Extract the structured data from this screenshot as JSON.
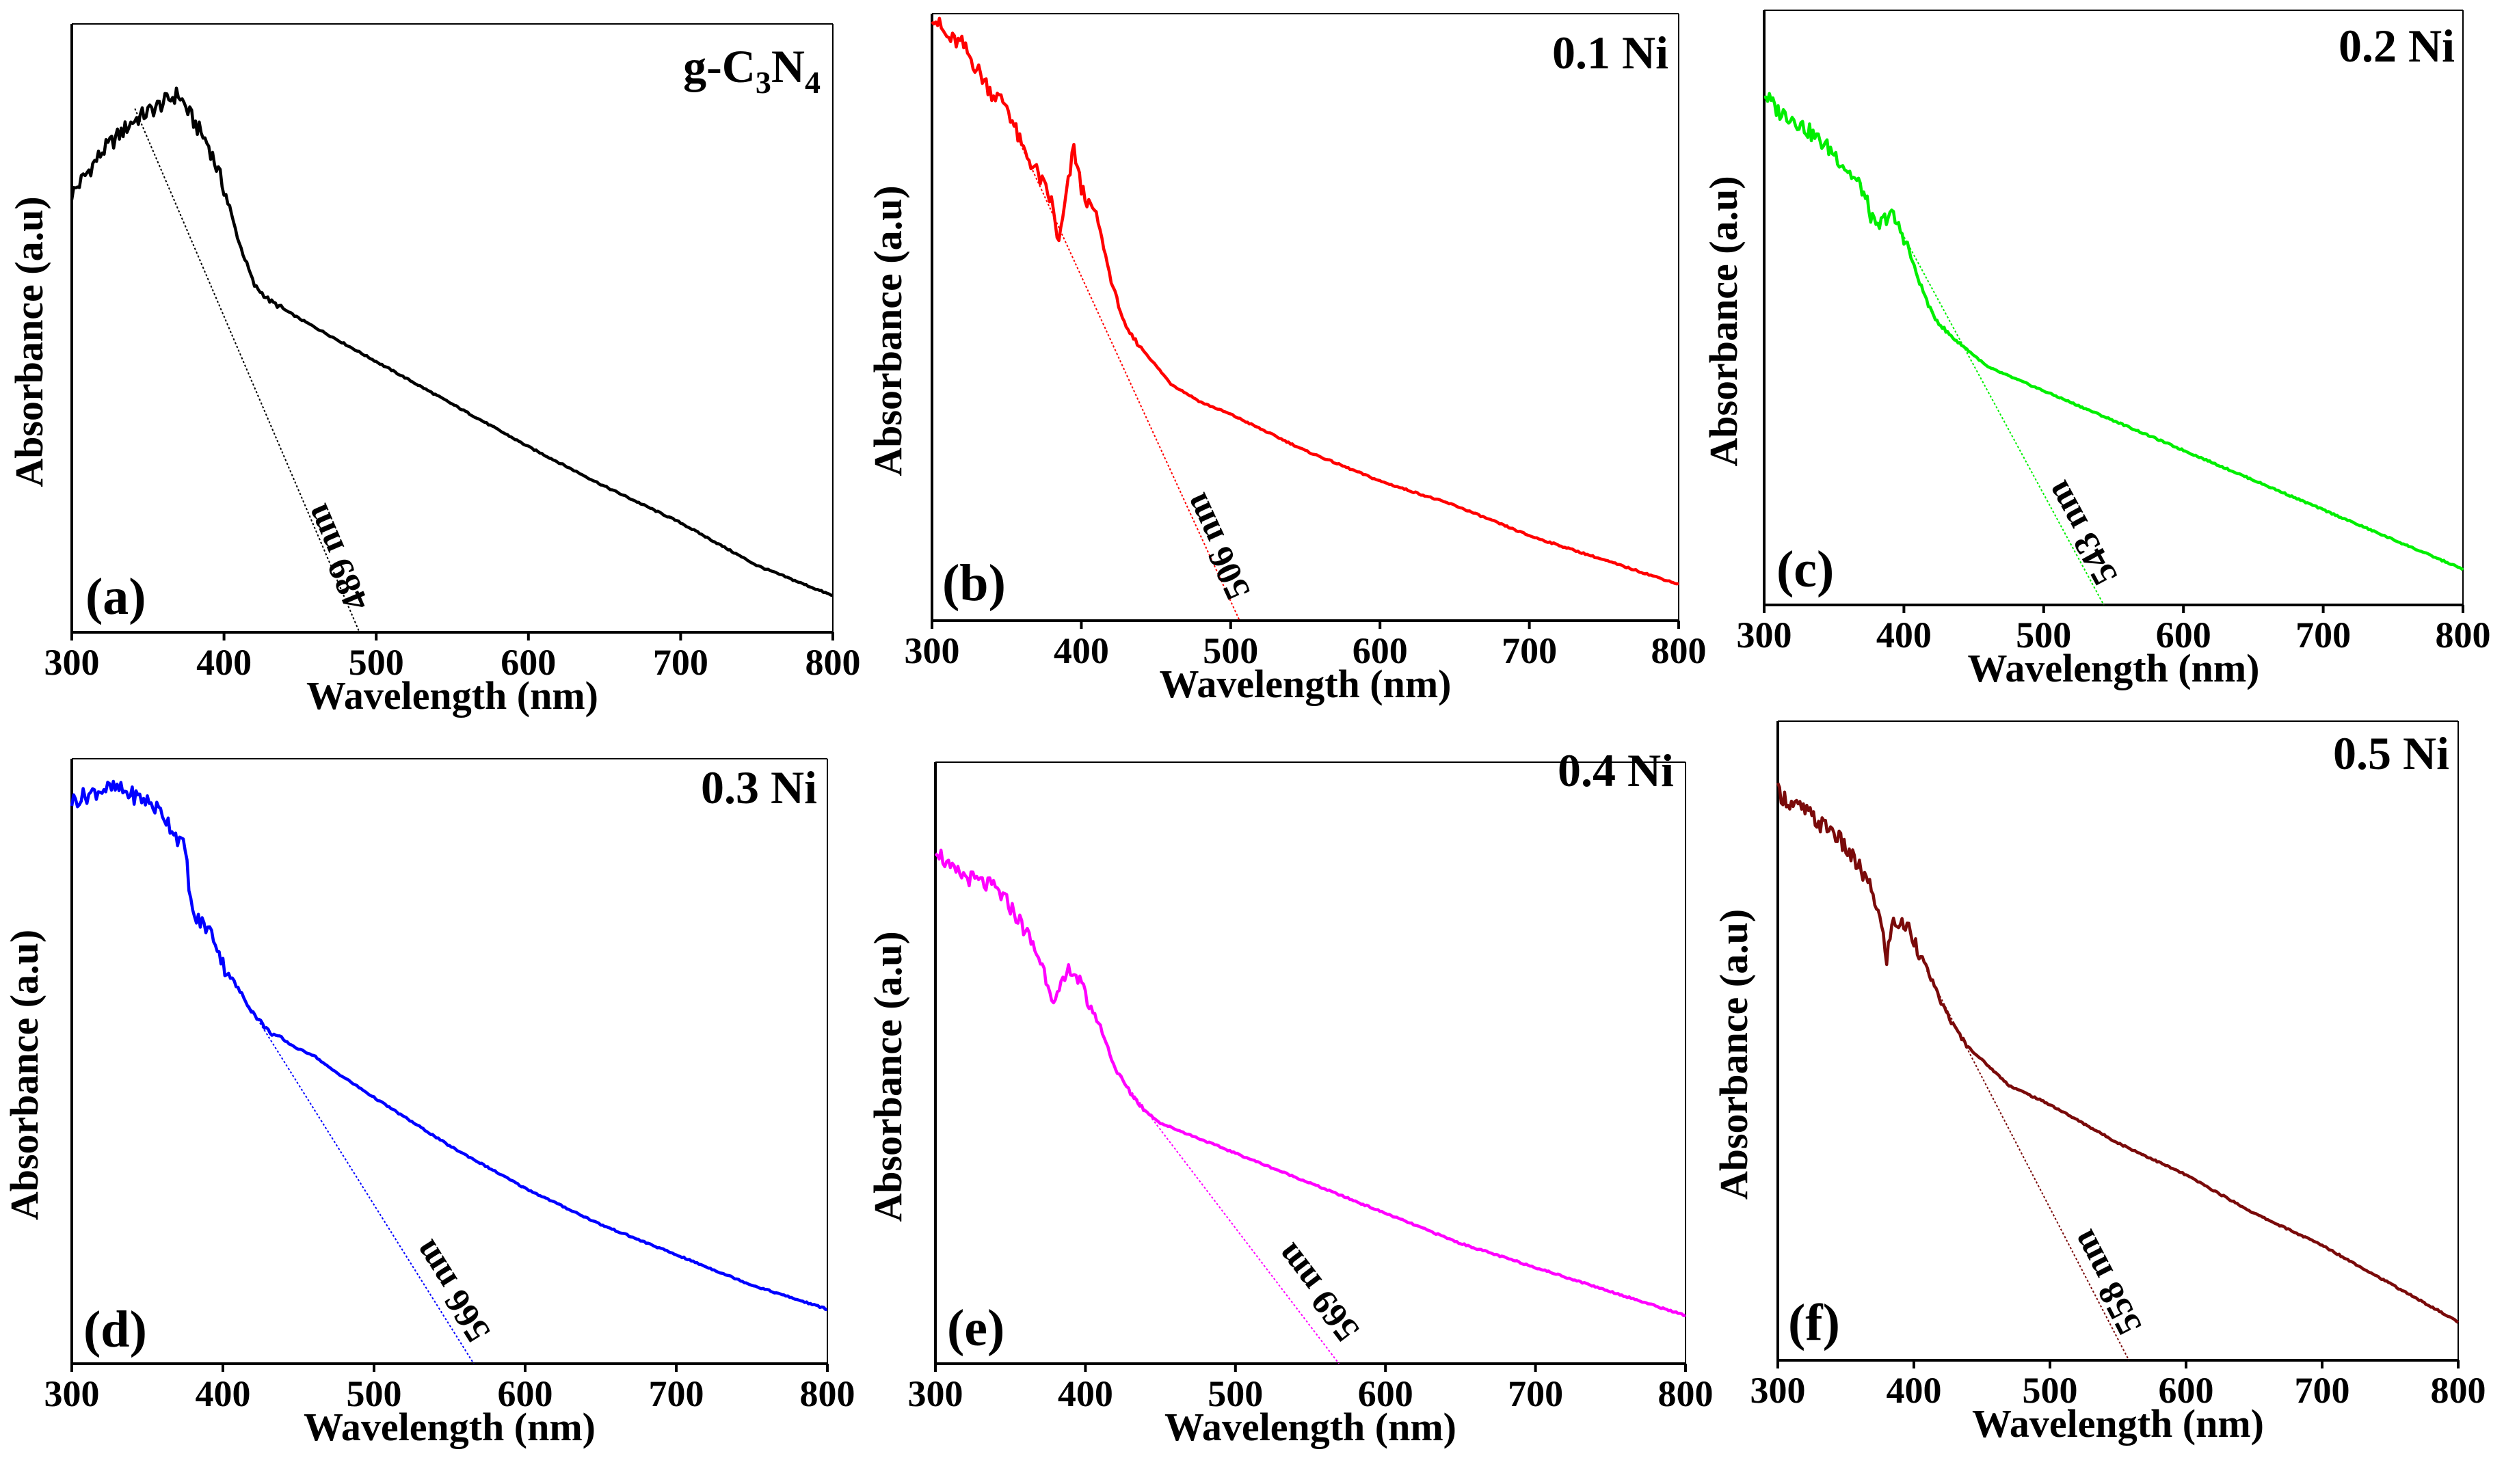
{
  "figure": {
    "xlabel": "Wavelength (nm)",
    "ylabel": "Absorbance (a.u)",
    "x_ticks": [
      "300",
      "400",
      "500",
      "600",
      "700",
      "800"
    ]
  },
  "chart_data": [
    {
      "type": "line",
      "panel": "(a)",
      "title": "g-C3N4",
      "xlabel": "Wavelength (nm)",
      "ylabel": "Absorbance (a.u)",
      "xlim": [
        300,
        800
      ],
      "ylim": [
        0,
        1
      ],
      "color": "#000000",
      "absorption_edge_nm": 489,
      "absorption_edge_label": "489 nm",
      "series": [
        {
          "x": [
            300,
            320,
            340,
            360,
            370,
            380,
            390,
            400,
            410,
            420,
            430,
            450,
            500,
            550,
            600,
            650,
            700,
            750,
            800
          ],
          "y": [
            0.72,
            0.79,
            0.84,
            0.87,
            0.885,
            0.84,
            0.8,
            0.73,
            0.64,
            0.57,
            0.545,
            0.515,
            0.445,
            0.375,
            0.305,
            0.24,
            0.18,
            0.11,
            0.06
          ]
        }
      ]
    },
    {
      "type": "line",
      "panel": "(b)",
      "title": "0.1 Ni",
      "xlabel": "Wavelength (nm)",
      "ylabel": "Absorbance (a.u)",
      "xlim": [
        300,
        800
      ],
      "ylim": [
        0,
        1
      ],
      "color": "#ff0000",
      "absorption_edge_nm": 506,
      "absorption_edge_label": "506 nm",
      "series": [
        {
          "x": [
            300,
            310,
            320,
            330,
            340,
            350,
            360,
            370,
            380,
            385,
            390,
            395,
            400,
            410,
            420,
            430,
            440,
            450,
            460,
            480,
            500,
            550,
            600,
            650,
            700,
            750,
            800
          ],
          "y": [
            1.0,
            0.96,
            0.95,
            0.91,
            0.87,
            0.85,
            0.78,
            0.74,
            0.69,
            0.62,
            0.7,
            0.78,
            0.71,
            0.67,
            0.56,
            0.48,
            0.45,
            0.42,
            0.39,
            0.36,
            0.34,
            0.28,
            0.23,
            0.19,
            0.14,
            0.1,
            0.06
          ]
        }
      ]
    },
    {
      "type": "line",
      "panel": "(c)",
      "title": "0.2 Ni",
      "xlabel": "Wavelength (nm)",
      "ylabel": "Absorbance (a.u)",
      "xlim": [
        300,
        800
      ],
      "ylim": [
        0,
        1
      ],
      "color": "#00ee00",
      "absorption_edge_nm": 543,
      "absorption_edge_label": "543 nm",
      "series": [
        {
          "x": [
            300,
            310,
            320,
            330,
            340,
            350,
            360,
            370,
            380,
            390,
            400,
            410,
            420,
            430,
            440,
            450,
            460,
            470,
            500,
            550,
            600,
            650,
            700,
            750,
            800
          ],
          "y": [
            0.86,
            0.83,
            0.82,
            0.8,
            0.78,
            0.76,
            0.73,
            0.7,
            0.63,
            0.66,
            0.62,
            0.55,
            0.49,
            0.46,
            0.44,
            0.42,
            0.4,
            0.39,
            0.36,
            0.31,
            0.26,
            0.21,
            0.16,
            0.11,
            0.06
          ]
        }
      ]
    },
    {
      "type": "line",
      "panel": "(d)",
      "title": "0.3 Ni",
      "xlabel": "Wavelength (nm)",
      "ylabel": "Absorbance (a.u)",
      "xlim": [
        300,
        800
      ],
      "ylim": [
        0,
        1
      ],
      "color": "#0000ff",
      "absorption_edge_nm": 566,
      "absorption_edge_label": "566 nm",
      "series": [
        {
          "x": [
            300,
            310,
            320,
            330,
            340,
            350,
            360,
            370,
            375,
            380,
            385,
            390,
            395,
            400,
            410,
            420,
            430,
            450,
            460,
            470,
            500,
            550,
            600,
            650,
            700,
            750,
            800
          ],
          "y": [
            0.93,
            0.94,
            0.95,
            0.95,
            0.94,
            0.93,
            0.91,
            0.87,
            0.85,
            0.74,
            0.73,
            0.72,
            0.7,
            0.66,
            0.62,
            0.58,
            0.55,
            0.52,
            0.51,
            0.49,
            0.44,
            0.36,
            0.29,
            0.23,
            0.18,
            0.13,
            0.09
          ]
        }
      ]
    },
    {
      "type": "line",
      "panel": "(e)",
      "title": "0.4 Ni",
      "xlabel": "Wavelength (nm)",
      "ylabel": "Absorbance (a.u)",
      "xlim": [
        300,
        800
      ],
      "ylim": [
        0,
        1
      ],
      "color": "#ff00ff",
      "absorption_edge_nm": 569,
      "absorption_edge_label": "569 nm",
      "series": [
        {
          "x": [
            300,
            310,
            320,
            330,
            340,
            350,
            360,
            370,
            380,
            385,
            390,
            395,
            400,
            410,
            420,
            430,
            440,
            450,
            460,
            500,
            550,
            600,
            650,
            700,
            750,
            800
          ],
          "y": [
            0.86,
            0.82,
            0.81,
            0.8,
            0.79,
            0.76,
            0.72,
            0.67,
            0.6,
            0.63,
            0.66,
            0.64,
            0.61,
            0.56,
            0.49,
            0.45,
            0.42,
            0.4,
            0.39,
            0.35,
            0.3,
            0.25,
            0.2,
            0.16,
            0.12,
            0.08
          ]
        }
      ]
    },
    {
      "type": "line",
      "panel": "(f)",
      "title": "0.5 Ni",
      "xlabel": "Wavelength (nm)",
      "ylabel": "Absorbance (a.u)",
      "xlim": [
        300,
        800
      ],
      "ylim": [
        0,
        1
      ],
      "color": "#7a0a0a",
      "absorption_edge_nm": 558,
      "absorption_edge_label": "558 nm",
      "series": [
        {
          "x": [
            300,
            310,
            320,
            330,
            340,
            350,
            360,
            370,
            375,
            380,
            385,
            390,
            395,
            400,
            410,
            420,
            430,
            440,
            450,
            460,
            470,
            500,
            550,
            600,
            650,
            700,
            750,
            800
          ],
          "y": [
            0.89,
            0.87,
            0.86,
            0.84,
            0.83,
            0.8,
            0.77,
            0.73,
            0.69,
            0.63,
            0.69,
            0.68,
            0.68,
            0.66,
            0.61,
            0.56,
            0.52,
            0.49,
            0.47,
            0.45,
            0.43,
            0.4,
            0.34,
            0.29,
            0.23,
            0.18,
            0.12,
            0.06
          ]
        }
      ]
    }
  ]
}
